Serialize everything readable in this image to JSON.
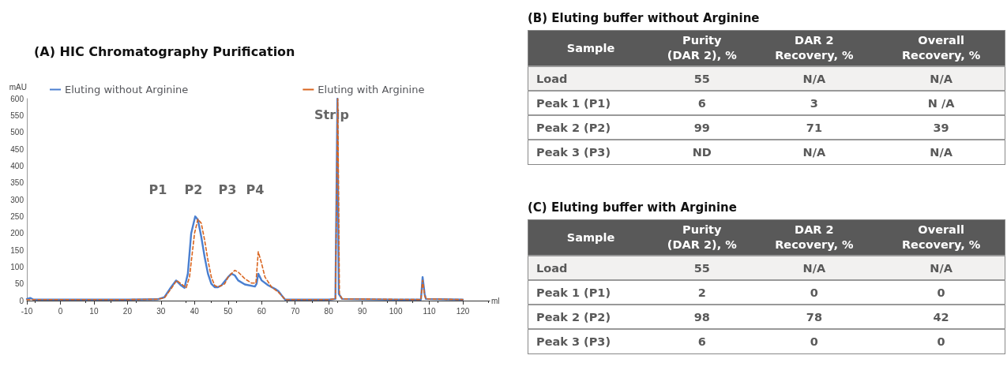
{
  "chart_data": [
    {
      "type": "line",
      "title": "(A) HIC Chromatography Purification",
      "xlabel": "ml",
      "ylabel": "mAU",
      "xlim": [
        -10,
        128
      ],
      "xticks": [
        -10,
        0,
        10,
        20,
        30,
        40,
        50,
        60,
        70,
        80,
        90,
        100,
        110,
        120
      ],
      "ylim": [
        0,
        600
      ],
      "yticks": [
        0,
        50,
        100,
        150,
        200,
        250,
        300,
        350,
        400,
        450,
        500,
        550,
        600
      ],
      "grid": false,
      "legend": "top",
      "marker": "none",
      "annotations": [
        "P1",
        "P2",
        "P3",
        "P4",
        "Strip"
      ],
      "series": [
        {
          "name": "Eluting without Arginine",
          "color": "#4a7fd0",
          "line_style": "solid",
          "x": [
            -10,
            -9,
            -8,
            0,
            20,
            29,
            31,
            33,
            34.5,
            36,
            37,
            38,
            39,
            40.2,
            41,
            42,
            43,
            44,
            45,
            46,
            47,
            48,
            50,
            51,
            52,
            53,
            55,
            58,
            58.5,
            59,
            60,
            62,
            64,
            65,
            66,
            67,
            80,
            82,
            82.6,
            83,
            84,
            100,
            107.5,
            108,
            108.6,
            109,
            120
          ],
          "values": [
            5,
            8,
            3,
            3,
            3,
            4,
            10,
            40,
            60,
            45,
            38,
            80,
            200,
            250,
            240,
            190,
            130,
            80,
            50,
            40,
            40,
            45,
            70,
            80,
            75,
            60,
            48,
            42,
            50,
            80,
            60,
            45,
            35,
            28,
            15,
            3,
            3,
            5,
            600,
            20,
            5,
            3,
            3,
            70,
            20,
            5,
            3
          ]
        },
        {
          "name": "Eluting with Arginine",
          "color": "#d9641e",
          "line_style": "dashed",
          "x": [
            -10,
            0,
            20,
            29,
            31,
            33,
            34.7,
            36,
            37.5,
            38.5,
            40,
            41,
            42,
            43,
            44,
            45,
            46,
            47,
            49,
            50,
            52,
            53,
            55,
            57,
            58.3,
            59,
            60,
            61,
            63,
            65,
            66,
            67,
            80,
            82,
            82.7,
            83.2,
            84,
            107.5,
            108,
            108.6,
            109,
            120
          ],
          "values": [
            3,
            3,
            3,
            4,
            8,
            35,
            60,
            50,
            38,
            70,
            200,
            242,
            230,
            180,
            120,
            70,
            45,
            40,
            50,
            70,
            90,
            85,
            65,
            52,
            52,
            145,
            110,
            70,
            40,
            25,
            15,
            3,
            3,
            5,
            600,
            20,
            5,
            3,
            60,
            15,
            5,
            3
          ]
        }
      ]
    },
    {
      "type": "other",
      "title": "(B) Eluting buffer without Arginine",
      "categories": [
        "Sample",
        "Purity (DAR 2), %",
        "DAR 2 Recovery, %",
        "Overall Recovery, %"
      ],
      "cell_labels": [
        [
          "Load",
          "55",
          "N/A",
          "N/A"
        ],
        [
          "Peak 1 (P1)",
          "6",
          "3",
          "N /A"
        ],
        [
          "Peak 2 (P2)",
          "99",
          "71",
          "39"
        ],
        [
          "Peak 3 (P3)",
          "ND",
          "N/A",
          "N/A"
        ]
      ]
    },
    {
      "type": "other",
      "title": "(C) Eluting buffer with Arginine",
      "categories": [
        "Sample",
        "Purity (DAR 2), %",
        "DAR 2 Recovery, %",
        "Overall Recovery, %"
      ],
      "cell_labels": [
        [
          "Load",
          "55",
          "N/A",
          "N/A"
        ],
        [
          "Peak 1 (P1)",
          "2",
          "0",
          "0"
        ],
        [
          "Peak 2 (P2)",
          "98",
          "78",
          "42"
        ],
        [
          "Peak 3 (P3)",
          "6",
          "0",
          "0"
        ]
      ]
    }
  ]
}
